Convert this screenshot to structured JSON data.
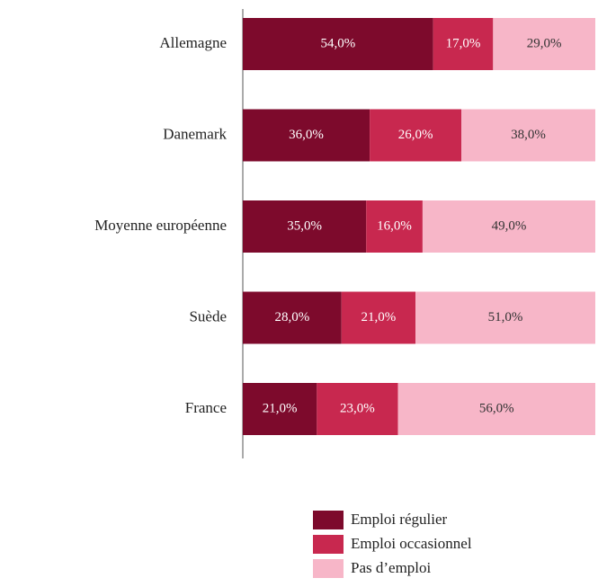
{
  "chart_data": {
    "type": "stacked_barh",
    "categories": [
      "Allemagne",
      "Danemark",
      "Moyenne européenne",
      "Suède",
      "France"
    ],
    "series": [
      {
        "name": "Emploi régulier",
        "color": "#7d0a2c",
        "values": [
          54,
          36,
          35,
          28,
          21
        ],
        "value_labels": [
          "54,0%",
          "36,0%",
          "35,0%",
          "28,0%",
          "21,0%"
        ]
      },
      {
        "name": "Emploi occasionnel",
        "color": "#c8284f",
        "values": [
          17,
          26,
          16,
          21,
          23
        ],
        "value_labels": [
          "17,0%",
          "26,0%",
          "16,0%",
          "21,0%",
          "23,0%"
        ]
      },
      {
        "name": "Pas d’emploi",
        "color": "#f7b6c8",
        "values": [
          29,
          38,
          49,
          51,
          56
        ],
        "value_labels": [
          "29,0%",
          "38,0%",
          "49,0%",
          "51,0%",
          "56,0%"
        ]
      }
    ],
    "xlim": [
      0,
      100
    ]
  }
}
